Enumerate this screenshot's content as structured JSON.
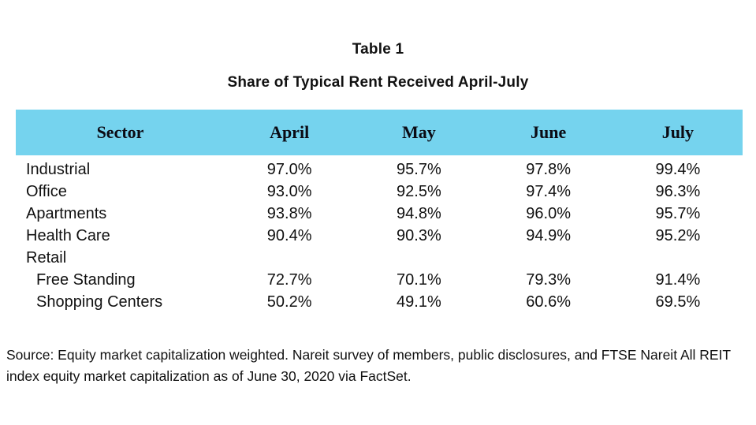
{
  "title": "Table 1",
  "subtitle": "Share of Typical Rent Received April-July",
  "colors": {
    "header_background": "#75D3EE",
    "text": "#111111",
    "page_background": "#ffffff"
  },
  "chart_data": {
    "type": "table",
    "title": "Table 1",
    "subtitle": "Share of Typical Rent Received April-July",
    "columns": [
      "Sector",
      "April",
      "May",
      "June",
      "July"
    ],
    "rows": [
      {
        "sector": "Industrial",
        "indent": false,
        "values": [
          "97.0%",
          "95.7%",
          "97.8%",
          "99.4%"
        ]
      },
      {
        "sector": "Office",
        "indent": false,
        "values": [
          "93.0%",
          "92.5%",
          "97.4%",
          "96.3%"
        ]
      },
      {
        "sector": "Apartments",
        "indent": false,
        "values": [
          "93.8%",
          "94.8%",
          "96.0%",
          "95.7%"
        ]
      },
      {
        "sector": "Health Care",
        "indent": false,
        "values": [
          "90.4%",
          "90.3%",
          "94.9%",
          "95.2%"
        ]
      },
      {
        "sector": "Retail",
        "indent": false,
        "values": [
          "",
          "",
          "",
          ""
        ]
      },
      {
        "sector": "Free Standing",
        "indent": true,
        "values": [
          "72.7%",
          "70.1%",
          "79.3%",
          "91.4%"
        ]
      },
      {
        "sector": "Shopping Centers",
        "indent": true,
        "values": [
          "50.2%",
          "49.1%",
          "60.6%",
          "69.5%"
        ]
      }
    ],
    "units": "percent of typical rent received",
    "legend_position": "none",
    "grid": false
  },
  "source": "Source: Equity market capitalization weighted. Nareit survey of members, public disclosures, and FTSE Nareit All REIT index equity market capitalization as of June 30, 2020 via FactSet."
}
